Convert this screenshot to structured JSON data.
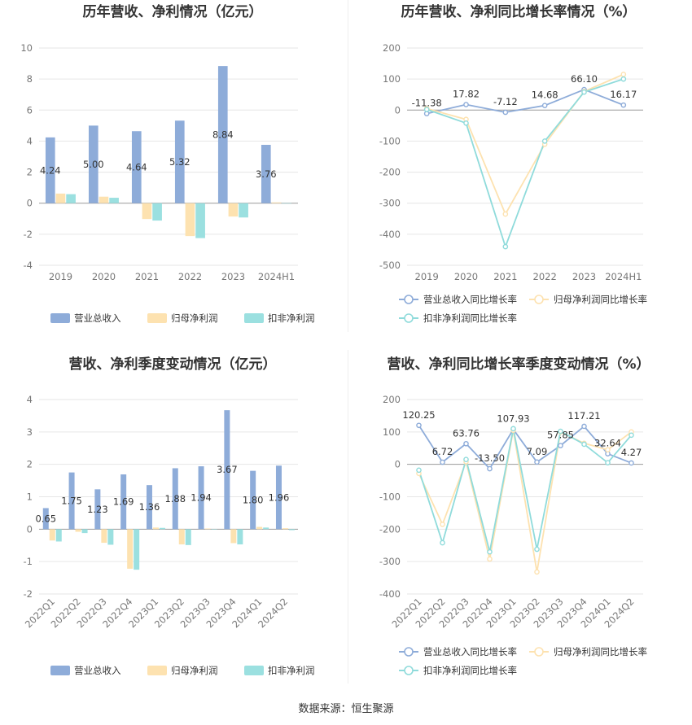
{
  "source_text": "数据来源：恒生聚源",
  "colors": {
    "revenue": "#8eacd9",
    "net_profit": "#fde2b0",
    "deducted_profit": "#9be0e0",
    "revenue_line": "#8eacd9",
    "net_line": "#fde2b0",
    "deducted_line": "#8fdbdb",
    "grid": "#e6e6e6",
    "axis_text": "#777777",
    "title": "#333333"
  },
  "chart_data": [
    {
      "type": "bar",
      "title": "历年营收、净利情况（亿元）",
      "categories": [
        "2019",
        "2020",
        "2021",
        "2022",
        "2023",
        "2024H1"
      ],
      "ylim": [
        -4,
        10
      ],
      "yticks": [
        -4,
        -2,
        0,
        2,
        4,
        6,
        8,
        10
      ],
      "series": [
        {
          "name": "营业总收入",
          "values": [
            4.24,
            5.0,
            4.64,
            5.32,
            8.84,
            3.76
          ],
          "labels": [
            "4.24",
            "5.00",
            "4.64",
            "5.32",
            "8.84",
            "3.76"
          ]
        },
        {
          "name": "归母净利润",
          "values": [
            0.62,
            0.42,
            -1.02,
            -2.12,
            -0.86,
            0.05
          ]
        },
        {
          "name": "扣非净利润",
          "values": [
            0.58,
            0.35,
            -1.12,
            -2.25,
            -0.92,
            0.0
          ]
        }
      ],
      "legend": "bottom"
    },
    {
      "type": "line",
      "title": "历年营收、净利同比增长率情况（%）",
      "categories": [
        "2019",
        "2020",
        "2021",
        "2022",
        "2023",
        "2024H1"
      ],
      "ylim": [
        -500,
        200
      ],
      "yticks": [
        -500,
        -400,
        -300,
        -200,
        -100,
        0,
        100,
        200
      ],
      "series": [
        {
          "name": "营业总收入同比增长率",
          "values": [
            -11.38,
            17.82,
            -7.12,
            14.68,
            66.1,
            16.17
          ],
          "labels": [
            "-11.38",
            "17.82",
            "-7.12",
            "14.68",
            "66.10",
            "16.17"
          ]
        },
        {
          "name": "归母净利润同比增长率",
          "values": [
            5,
            -30,
            -335,
            -110,
            60,
            115
          ]
        },
        {
          "name": "扣非净利润同比增长率",
          "values": [
            2,
            -42,
            -440,
            -100,
            58,
            100
          ]
        }
      ],
      "legend": "bottom"
    },
    {
      "type": "bar",
      "title": "营收、净利季度变动情况（亿元）",
      "categories": [
        "2022Q1",
        "2022Q2",
        "2022Q3",
        "2022Q4",
        "2023Q1",
        "2023Q2",
        "2023Q3",
        "2023Q4",
        "2024Q1",
        "2024Q2"
      ],
      "ylim": [
        -2,
        4
      ],
      "yticks": [
        -2,
        -1,
        0,
        1,
        2,
        3,
        4
      ],
      "series": [
        {
          "name": "营业总收入",
          "values": [
            0.65,
            1.75,
            1.23,
            1.69,
            1.36,
            1.88,
            1.94,
            3.67,
            1.8,
            1.96
          ],
          "labels": [
            "0.65",
            "1.75",
            "1.23",
            "1.69",
            "1.36",
            "1.88",
            "1.94",
            "3.67",
            "1.80",
            "1.96"
          ]
        },
        {
          "name": "归母净利润",
          "values": [
            -0.35,
            -0.08,
            -0.42,
            -1.22,
            0.05,
            -0.47,
            0.02,
            -0.43,
            0.07,
            0.03
          ]
        },
        {
          "name": "扣非净利润",
          "values": [
            -0.38,
            -0.12,
            -0.48,
            -1.25,
            0.04,
            -0.49,
            0.0,
            -0.47,
            0.05,
            -0.03
          ]
        }
      ],
      "legend": "bottom"
    },
    {
      "type": "line",
      "title": "营收、净利同比增长率季度变动情况（%）",
      "categories": [
        "2022Q1",
        "2022Q2",
        "2022Q3",
        "2022Q4",
        "2023Q1",
        "2023Q2",
        "2023Q3",
        "2023Q4",
        "2024Q1",
        "2024Q2"
      ],
      "ylim": [
        -400,
        200
      ],
      "yticks": [
        -400,
        -300,
        -200,
        -100,
        0,
        100,
        200
      ],
      "series": [
        {
          "name": "营业总收入同比增长率",
          "values": [
            120.25,
            6.72,
            63.76,
            -13.5,
            107.93,
            7.09,
            57.85,
            117.21,
            32.64,
            4.27
          ],
          "labels": [
            "120.25",
            "6.72",
            "63.76",
            "-13.50",
            "107.93",
            "7.09",
            "57.85",
            "117.21",
            "32.64",
            "4.27"
          ]
        },
        {
          "name": "归母净利润同比增长率",
          "values": [
            -28,
            -185,
            8,
            -292,
            105,
            -332,
            100,
            65,
            45,
            100
          ]
        },
        {
          "name": "扣非净利润同比增长率",
          "values": [
            -18,
            -242,
            15,
            -270,
            110,
            -262,
            102,
            62,
            5,
            90
          ]
        }
      ],
      "legend": "bottom"
    }
  ]
}
